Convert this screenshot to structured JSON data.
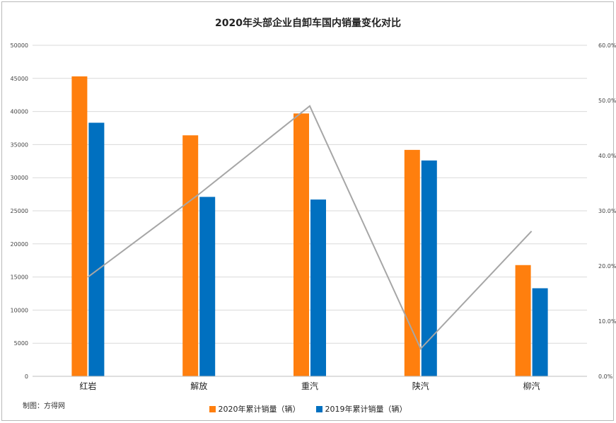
{
  "chart_data": {
    "type": "bar",
    "title": "2020年头部企业自卸车国内销量变化对比",
    "categories": [
      "红岩",
      "解放",
      "重汽",
      "陕汽",
      "柳汽"
    ],
    "series": [
      {
        "name": "2020年累计销量（辆）",
        "values": [
          45300,
          36400,
          39700,
          34200,
          16800
        ],
        "color": "#FF7F0E"
      },
      {
        "name": "2019年累计销量（辆）",
        "values": [
          38300,
          27100,
          26700,
          32600,
          13300
        ],
        "color": "#0070C0"
      }
    ],
    "line_series": {
      "values": [
        18.0,
        33.0,
        49.0,
        5.0,
        26.3
      ],
      "color": "#A6A6A6",
      "axis": "right"
    },
    "ylim": [
      0,
      50000
    ],
    "y_ticks": [
      "0",
      "5000",
      "10000",
      "15000",
      "20000",
      "25000",
      "30000",
      "35000",
      "40000",
      "45000",
      "50000"
    ],
    "y2lim": [
      0,
      60
    ],
    "y2_ticks": [
      "0.0%",
      "10.0%",
      "20.0%",
      "30.0%",
      "40.0%",
      "50.0%",
      "60.0%"
    ],
    "grid": true,
    "legend_position": "bottom"
  },
  "credit": "制图：方得网"
}
